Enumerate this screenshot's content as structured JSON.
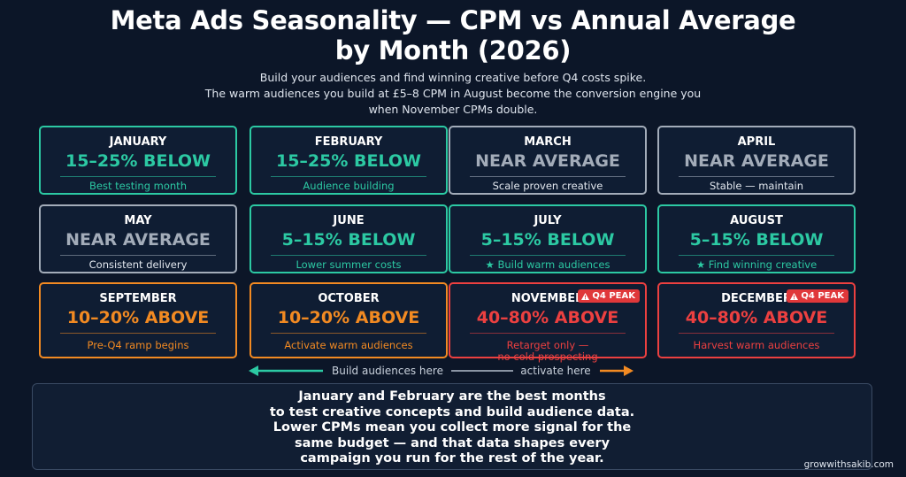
{
  "header": {
    "title": [
      "Meta Ads Seasonality — CPM vs Annual Average",
      "by Month (2026)"
    ],
    "subtitle": [
      "Build your audiences and find winning creative before Q4 costs spike.",
      "The warm audiences you build at £5–8 CPM in August become the conversion engine you",
      "when November CPMs double."
    ]
  },
  "months": [
    {
      "name": "JANUARY",
      "status": "15–25% BELOW",
      "note": "Best testing month",
      "color": "#2cc9a3"
    },
    {
      "name": "FEBRUARY",
      "status": "15–25% BELOW",
      "note": "Audience building",
      "color": "#2cc9a3"
    },
    {
      "name": "MARCH",
      "status": "NEAR AVERAGE",
      "note": "Scale proven creative",
      "color": "#a3acb9"
    },
    {
      "name": "APRIL",
      "status": "NEAR AVERAGE",
      "note": "Stable — maintain",
      "color": "#a3acb9"
    },
    {
      "name": "MAY",
      "status": "NEAR AVERAGE",
      "note": "Consistent delivery",
      "color": "#a3acb9"
    },
    {
      "name": "JUNE",
      "status": "5–15% BELOW",
      "note": "Lower summer costs",
      "color": "#2cc9a3"
    },
    {
      "name": "JULY",
      "status": "5–15% BELOW",
      "note": "★ Build warm audiences",
      "color": "#2cc9a3"
    },
    {
      "name": "AUGUST",
      "status": "5–15% BELOW",
      "note": "★ Find winning creative",
      "color": "#2cc9a3"
    },
    {
      "name": "SEPTEMBER",
      "status": "10–20% ABOVE",
      "note": "Pre-Q4 ramp begins",
      "color": "#f28a22"
    },
    {
      "name": "OCTOBER",
      "status": "10–20% ABOVE",
      "note": "Activate warm audiences",
      "color": "#f28a22"
    },
    {
      "name": "NOVEMBER",
      "status": "40–80% ABOVE",
      "note": "Retarget only —\nno cold prospecting",
      "color": "#ec4040",
      "badge": "Q4 PEAK"
    },
    {
      "name": "DECEMBER",
      "status": "40–80% ABOVE",
      "note": "Harvest warm audiences",
      "color": "#ec4040",
      "badge": "Q4 PEAK"
    }
  ],
  "flow": {
    "left": "Build audiences here",
    "right": "activate here"
  },
  "footer": [
    "January and February are the best months",
    "to test creative concepts and build audience data.",
    "Lower CPMs mean you collect more signal for the",
    "same budget — and that data shapes every",
    "campaign you run for the rest of the year."
  ],
  "credit": "growwithsakib.com"
}
